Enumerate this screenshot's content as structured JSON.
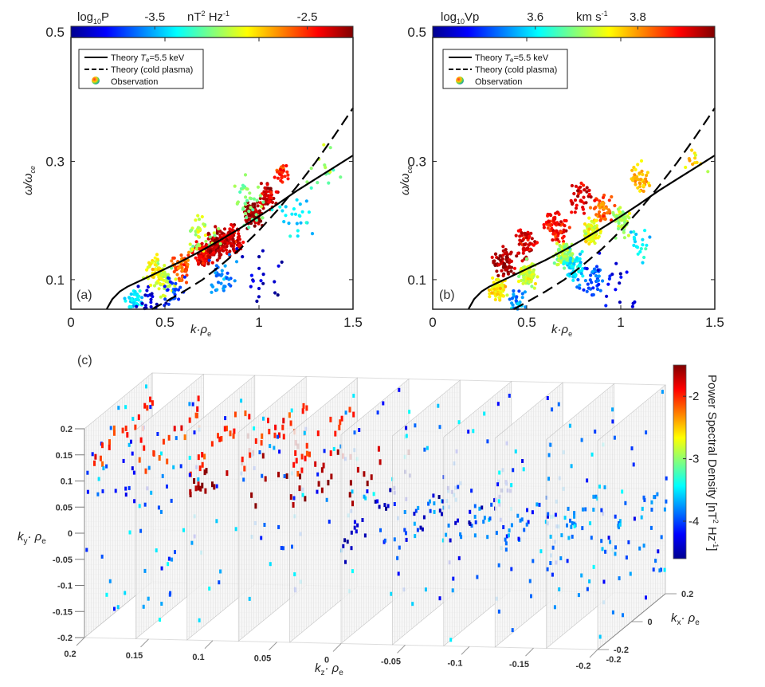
{
  "chart_data": [
    {
      "id": "a",
      "type": "scatter",
      "panel_label": "(a)",
      "xlabel": "k·ρe",
      "ylabel": "ω/ωce",
      "xlim": [
        0,
        1.5
      ],
      "ylim": [
        0.05,
        0.5
      ],
      "xticks": [
        0,
        0.5,
        1,
        1.5
      ],
      "xtick_labels": [
        "0",
        "0.5",
        "1",
        "1.5"
      ],
      "yticks": [
        0.1,
        0.3,
        0.5
      ],
      "ytick_labels": [
        "0.1",
        "0.3",
        "0.5"
      ],
      "colorbar": {
        "title": "log10P",
        "unit": "nT² Hz⁻¹",
        "range": [
          -4.05,
          -2.2
        ],
        "ticks": [
          -3.5,
          -2.5
        ],
        "tick_labels": [
          "-3.5",
          "-2.5"
        ],
        "colormap": "jet",
        "placement": "top"
      },
      "legend": {
        "placement": "top-left",
        "entries": [
          {
            "label": "Theory Te=5.5 keV",
            "style": "solid"
          },
          {
            "label": "Theory (cold plasma)",
            "style": "dashed"
          },
          {
            "label": "Observation",
            "style": "colored-marker"
          }
        ]
      },
      "series": [
        {
          "name": "Theory Te=5.5 keV",
          "kind": "line",
          "style": "solid",
          "x": [
            0.19,
            0.22,
            0.26,
            0.3,
            0.4,
            0.5,
            0.6,
            0.7,
            0.8,
            0.9,
            1.0,
            1.1,
            1.2,
            1.3,
            1.4,
            1.5
          ],
          "y": [
            0.05,
            0.067,
            0.08,
            0.088,
            0.103,
            0.118,
            0.133,
            0.15,
            0.168,
            0.187,
            0.207,
            0.228,
            0.25,
            0.27,
            0.29,
            0.31
          ]
        },
        {
          "name": "Theory (cold plasma)",
          "kind": "line",
          "style": "dashed",
          "x": [
            0.43,
            0.5,
            0.6,
            0.7,
            0.8,
            0.9,
            1.0,
            1.1,
            1.2,
            1.3,
            1.4,
            1.5
          ],
          "y": [
            0.05,
            0.062,
            0.08,
            0.1,
            0.125,
            0.152,
            0.183,
            0.218,
            0.257,
            0.298,
            0.343,
            0.39
          ]
        },
        {
          "name": "Observation",
          "kind": "clusters",
          "note": "approximate point clusters: center x, center y, spread, count, color value (log10P)",
          "clusters": [
            [
              0.33,
              0.065,
              0.04,
              40,
              -3.4
            ],
            [
              0.42,
              0.062,
              0.06,
              30,
              -3.9
            ],
            [
              0.5,
              0.1,
              0.05,
              60,
              -3.0
            ],
            [
              0.45,
              0.115,
              0.05,
              40,
              -2.9
            ],
            [
              0.6,
              0.12,
              0.05,
              60,
              -2.6
            ],
            [
              0.7,
              0.14,
              0.04,
              90,
              -2.4
            ],
            [
              0.78,
              0.16,
              0.05,
              120,
              -2.3
            ],
            [
              0.85,
              0.17,
              0.05,
              90,
              -2.35
            ],
            [
              0.97,
              0.21,
              0.04,
              100,
              -2.25
            ],
            [
              1.05,
              0.24,
              0.04,
              60,
              -2.35
            ],
            [
              1.12,
              0.28,
              0.03,
              30,
              -2.5
            ],
            [
              0.7,
              0.18,
              0.07,
              40,
              -3.0
            ],
            [
              0.95,
              0.23,
              0.08,
              40,
              -3.1
            ],
            [
              1.2,
              0.2,
              0.1,
              25,
              -3.4
            ],
            [
              0.8,
              0.1,
              0.07,
              35,
              -3.6
            ],
            [
              1.0,
              0.1,
              0.1,
              20,
              -3.9
            ],
            [
              1.35,
              0.27,
              0.1,
              15,
              -3.1
            ],
            [
              0.55,
              0.075,
              0.06,
              25,
              -3.7
            ]
          ]
        }
      ]
    },
    {
      "id": "b",
      "type": "scatter",
      "panel_label": "(b)",
      "xlabel": "k·ρe",
      "ylabel": "ω/ωce",
      "xlim": [
        0,
        1.5
      ],
      "ylim": [
        0.05,
        0.5
      ],
      "xticks": [
        0,
        0.5,
        1,
        1.5
      ],
      "xtick_labels": [
        "0",
        "0.5",
        "1",
        "1.5"
      ],
      "yticks": [
        0.1,
        0.3,
        0.5
      ],
      "ytick_labels": [
        "0.1",
        "0.3",
        "0.5"
      ],
      "colorbar": {
        "title": "log10Vp",
        "unit": "km s⁻¹",
        "range": [
          3.4,
          3.95
        ],
        "ticks": [
          3.6,
          3.8
        ],
        "tick_labels": [
          "3.6",
          "3.8"
        ],
        "colormap": "jet",
        "placement": "top"
      },
      "legend": {
        "placement": "top-left",
        "entries": [
          {
            "label": "Theory Te=5.5 keV",
            "style": "solid"
          },
          {
            "label": "Theory (cold plasma)",
            "style": "dashed"
          },
          {
            "label": "Observation",
            "style": "colored-marker"
          }
        ]
      },
      "series": [
        {
          "name": "Theory Te=5.5 keV",
          "kind": "line",
          "style": "solid",
          "same_as": "a"
        },
        {
          "name": "Theory (cold plasma)",
          "kind": "line",
          "style": "dashed",
          "same_as": "a"
        },
        {
          "name": "Observation",
          "kind": "clusters",
          "note": "approximate point clusters: center x, center y, spread, count, color value (log10Vp)",
          "clusters": [
            [
              0.38,
              0.13,
              0.05,
              60,
              3.93
            ],
            [
              0.5,
              0.16,
              0.05,
              60,
              3.9
            ],
            [
              0.65,
              0.19,
              0.06,
              70,
              3.88
            ],
            [
              0.8,
              0.24,
              0.06,
              40,
              3.9
            ],
            [
              0.9,
              0.22,
              0.05,
              50,
              3.83
            ],
            [
              1.1,
              0.27,
              0.05,
              40,
              3.78
            ],
            [
              0.35,
              0.085,
              0.04,
              70,
              3.75
            ],
            [
              0.5,
              0.11,
              0.04,
              90,
              3.72
            ],
            [
              0.7,
              0.14,
              0.04,
              110,
              3.7
            ],
            [
              0.85,
              0.18,
              0.04,
              90,
              3.74
            ],
            [
              1.0,
              0.2,
              0.05,
              50,
              3.7
            ],
            [
              0.75,
              0.12,
              0.05,
              60,
              3.6
            ],
            [
              0.85,
              0.1,
              0.06,
              40,
              3.52
            ],
            [
              0.45,
              0.065,
              0.05,
              30,
              3.55
            ],
            [
              1.1,
              0.17,
              0.07,
              20,
              3.6
            ],
            [
              1.0,
              0.08,
              0.15,
              20,
              3.45
            ],
            [
              1.4,
              0.3,
              0.05,
              12,
              3.75
            ]
          ]
        }
      ]
    },
    {
      "id": "c",
      "type": "heatmap",
      "panel_label": "(c)",
      "subtype": "3d-slices",
      "xlabel": "kz· ρe",
      "ylabel": "ky· ρe",
      "zlabel": "kx· ρe",
      "kz_ticks": [
        0.2,
        0.15,
        0.1,
        0.05,
        0,
        -0.05,
        -0.1,
        -0.15,
        -0.2
      ],
      "kz_tick_labels": [
        "0.2",
        "0.15",
        "0.1",
        "0.05",
        "0",
        "-0.05",
        "-0.1",
        "-0.15",
        "-0.2"
      ],
      "ky_ticks": [
        0.2,
        0.15,
        0.1,
        0.05,
        0,
        -0.05,
        -0.1,
        -0.15,
        -0.2
      ],
      "ky_tick_labels": [
        "0.2",
        "0.15",
        "0.1",
        "0.05",
        "0",
        "-0.05",
        "-0.1",
        "-0.15",
        "-0.2"
      ],
      "kx_ticks": [
        0.2,
        0,
        -0.2
      ],
      "kx_tick_labels": [
        "0.2",
        "0",
        "-0.2"
      ],
      "extra_kz_tick_label": "-0.2",
      "slice_count": 11,
      "colorbar": {
        "title": "Power Spectral Density [nT² Hz⁻¹]",
        "range": [
          -4.6,
          -1.5
        ],
        "ticks": [
          -2,
          -3,
          -4
        ],
        "tick_labels": [
          "-2",
          "-3",
          "-4"
        ],
        "colormap": "jet",
        "placement": "right"
      },
      "features": [
        {
          "desc": "dark red horizontal band near ky≈0.08",
          "ky": 0.08,
          "kz_from": 0.12,
          "kz_to": 0.0,
          "value": -1.6
        },
        {
          "desc": "red/orange patches",
          "ky": 0.14,
          "kz_from": 0.2,
          "kz_to": 0.05,
          "value": -2.0
        },
        {
          "desc": "dark blue diagonal streaks",
          "ky": 0.0,
          "kz_from": 0.0,
          "kz_to": -0.08,
          "value": -4.4
        },
        {
          "desc": "sparse scattered points",
          "ky": 0.0,
          "kz_from": -0.05,
          "kz_to": -0.2,
          "value": -3.8
        }
      ]
    }
  ],
  "labels": {
    "a_cb_title": "log",
    "a_cb_sub": "10",
    "a_cb_var": "P",
    "a_cb_unit_main": "nT",
    "a_cb_unit_sup": "2",
    "a_cb_unit_hz": " Hz",
    "a_cb_unit_hzsup": "-1",
    "b_cb_title": "log",
    "b_cb_sub": "10",
    "b_cb_var": "Vp",
    "b_cb_unit": "km s",
    "b_cb_unit_sup": "-1",
    "legend_solid_pre": "Theory ",
    "legend_solid_T": "T",
    "legend_solid_sub": "e",
    "legend_solid_post": "=5.5 keV",
    "legend_dashed": "Theory (cold plasma)",
    "legend_obs": "Observation",
    "xlabel_k": "k·",
    "xlabel_rho": "ρ",
    "xlabel_sub": "e",
    "ylabel_omega": "ω/ω",
    "ylabel_sub": "ce",
    "c_ky_k": "k",
    "c_ky_sub": "y",
    "c_ky_rho": "· ρ",
    "c_ky_rsub": "e",
    "c_kz_k": "k",
    "c_kz_sub": "z",
    "c_kz_rho": "· ρ",
    "c_kz_rsub": "e",
    "c_kx_k": "k",
    "c_kx_sub": "x",
    "c_kx_rho": "· ρ",
    "c_kx_rsub": "e",
    "c_cb_title": "Power Spectral Density [nT",
    "c_cb_sup": "2",
    "c_cb_hz": " Hz",
    "c_cb_hzsup": "-1",
    "c_cb_close": "]"
  }
}
